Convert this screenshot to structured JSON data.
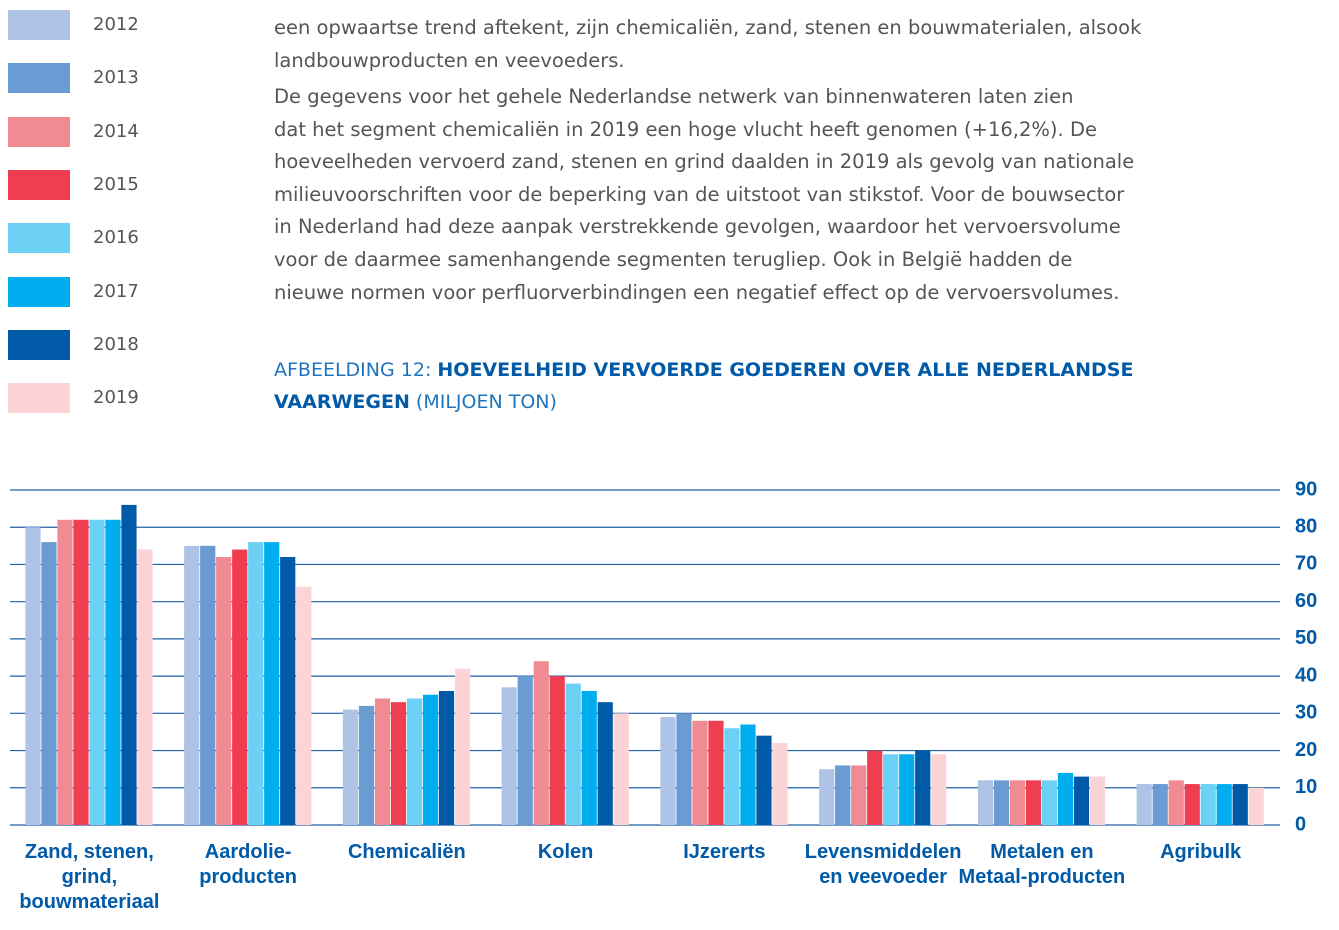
{
  "paragraphs": [
    [
      "een opwaartse trend aftekent, zijn chemicaliën, zand, stenen en bouwmaterialen, alsook",
      "landbouwproducten en veevoeders."
    ],
    [
      "De gegevens voor het gehele Nederlandse netwerk van binnenwateren laten zien",
      "dat het segment chemicaliën in 2019 een hoge vlucht heeft genomen (+16,2%). De",
      "hoeveelheden vervoerd zand, stenen en grind daalden in 2019 als gevolg van nationale",
      "milieuvoorschriften voor de beperking van de uitstoot van stikstof. Voor de bouwsector",
      "in Nederland had deze aanpak verstrekkende gevolgen, waardoor het vervoersvolume",
      "voor de daarmee samenhangende segmenten terugliep. Ook in België hadden de",
      "nieuwe normen voor perfluorverbindingen een negatief effect op de vervoersvolumes."
    ]
  ],
  "figure_title": {
    "prefix": "AFBEELDING 12:",
    "bold": "HOEVEELHEID VERVOERDE GOEDEREN OVER ALLE NEDERLANDSE VAARWEGEN",
    "suffix": "(MILJOEN TON)"
  },
  "chart_data": {
    "type": "bar",
    "categories": [
      "Zand, stenen, grind, bouwmateriaal",
      "Aardolie-producten",
      "Chemicaliën",
      "Kolen",
      "IJzererts",
      "Levensmiddelen en veevoeder",
      "Metalen en Metaal-producten",
      "Agribulk"
    ],
    "series": [
      {
        "name": "2012",
        "color": "#aec3e6",
        "values": [
          80,
          75,
          31,
          37,
          29,
          15,
          12,
          11
        ]
      },
      {
        "name": "2013",
        "color": "#6b9bd3",
        "values": [
          76,
          75,
          32,
          40,
          30,
          16,
          12,
          11
        ]
      },
      {
        "name": "2014",
        "color": "#f08a93",
        "values": [
          82,
          72,
          34,
          44,
          28,
          16,
          12,
          12
        ]
      },
      {
        "name": "2015",
        "color": "#ef3e4f",
        "values": [
          82,
          74,
          33,
          40,
          28,
          20,
          12,
          11
        ]
      },
      {
        "name": "2016",
        "color": "#6dd0f5",
        "values": [
          82,
          76,
          34,
          38,
          26,
          19,
          12,
          11
        ]
      },
      {
        "name": "2017",
        "color": "#00aeef",
        "values": [
          82,
          76,
          35,
          36,
          27,
          19,
          14,
          11
        ]
      },
      {
        "name": "2018",
        "color": "#005aa8",
        "values": [
          86,
          72,
          36,
          33,
          24,
          20,
          13,
          11
        ]
      },
      {
        "name": "2019",
        "color": "#fcd4d5",
        "values": [
          74,
          64,
          42,
          30,
          22,
          19,
          13,
          10
        ]
      }
    ],
    "ylim": [
      0,
      90
    ],
    "yticks": [
      0,
      10,
      20,
      30,
      40,
      50,
      60,
      70,
      80,
      90
    ],
    "grid": true
  }
}
